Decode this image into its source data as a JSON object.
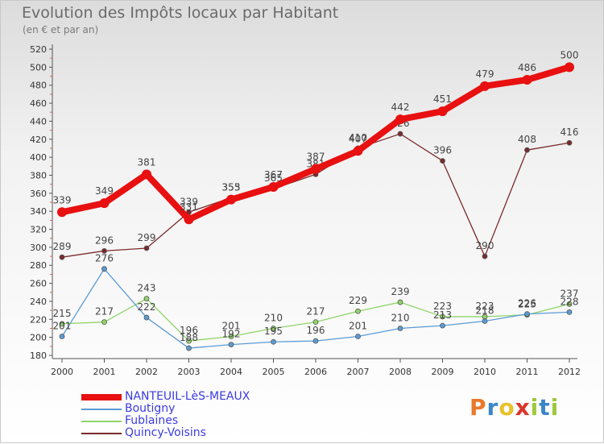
{
  "title": "Evolution des Impôts locaux par Habitant",
  "subtitle": "(en € et par an)",
  "logo": {
    "text": "Proxiti",
    "letters": [
      "P",
      "r",
      "o",
      "x",
      "i",
      "t",
      "i"
    ],
    "colors": [
      "#e8792c",
      "#3b86c8",
      "#e8c12c",
      "#d9342b",
      "#9dc83b",
      "#3b86c8",
      "#9dc83b"
    ]
  },
  "chart_data": {
    "type": "line",
    "title": "Evolution des Impôts locaux par Habitant",
    "subtitle": "(en € et par an)",
    "x": [
      2000,
      2001,
      2002,
      2003,
      2004,
      2005,
      2006,
      2007,
      2008,
      2009,
      2010,
      2011,
      2012
    ],
    "ylim": [
      180,
      520
    ],
    "yticks": [
      180,
      200,
      220,
      240,
      260,
      280,
      300,
      320,
      340,
      360,
      380,
      400,
      420,
      440,
      460,
      480,
      500,
      520
    ],
    "grid": false,
    "legend_position": "bottom-left",
    "series": [
      {
        "name": "NANTEUIL-LèS-MEAUX",
        "color": "#e81010",
        "values": [
          339,
          349,
          381,
          331,
          353,
          367,
          387,
          407,
          442,
          451,
          479,
          486,
          500
        ]
      },
      {
        "name": "Boutigny",
        "color": "#5b9bd5",
        "values": [
          201,
          276,
          222,
          188,
          192,
          195,
          196,
          201,
          210,
          213,
          218,
          226,
          228
        ]
      },
      {
        "name": "Fublaines",
        "color": "#90d46a",
        "values": [
          215,
          217,
          243,
          196,
          201,
          210,
          217,
          229,
          239,
          223,
          223,
          225,
          237
        ]
      },
      {
        "name": "Quincy-Voisins",
        "color": "#7a2a2a",
        "values": [
          289,
          296,
          299,
          339,
          355,
          365,
          381,
          410,
          426,
          396,
          290,
          408,
          416
        ]
      }
    ]
  }
}
